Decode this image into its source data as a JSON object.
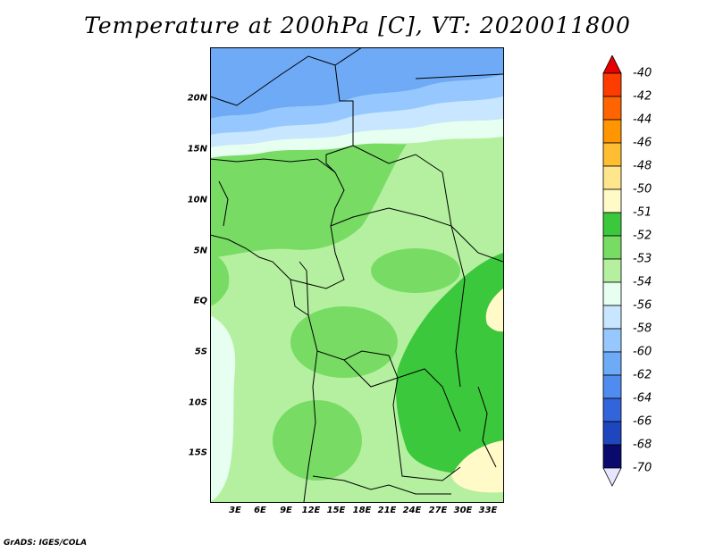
{
  "title": "Temperature at 200hPa [C], VT: 2020011800",
  "credit": "GrADS: IGES/COLA",
  "lat_labels": [
    "20N",
    "15N",
    "10N",
    "5N",
    "EQ",
    "5S",
    "10S",
    "15S"
  ],
  "lon_labels": [
    "3E",
    "6E",
    "9E",
    "12E",
    "15E",
    "18E",
    "21E",
    "24E",
    "27E",
    "30E",
    "33E"
  ],
  "colorbar": {
    "labels": [
      "-40",
      "-42",
      "-44",
      "-46",
      "-48",
      "-50",
      "-51",
      "-52",
      "-53",
      "-54",
      "-56",
      "-58",
      "-60",
      "-62",
      "-64",
      "-66",
      "-68",
      "-70"
    ],
    "colors": [
      "#e60000",
      "#ff3c00",
      "#ff6400",
      "#ff9600",
      "#ffbe32",
      "#ffe68c",
      "#fffac8",
      "#3cc83c",
      "#78dc64",
      "#b4f0a0",
      "#e6fff0",
      "#c8e6ff",
      "#96c8ff",
      "#6eaaf5",
      "#508cf0",
      "#3264dc",
      "#1e46be",
      "#0a0a6e"
    ],
    "top_arrow_color": "#e60000",
    "bottom_arrow_color": "#e6e6ff"
  },
  "map_colors": {
    "land_light": "#b4f0a0",
    "mid_green": "#78dc64",
    "dark_green": "#3cc83c",
    "pale": "#e6fff0",
    "blue_light": "#c8e6ff",
    "blue_mid": "#96c8ff",
    "blue_dark": "#6eaaf5",
    "yellow": "#fffac8"
  }
}
